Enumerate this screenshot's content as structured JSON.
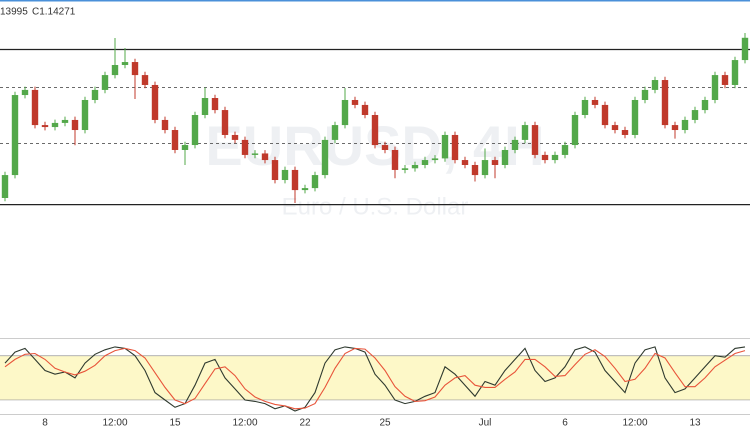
{
  "header": {
    "ohlc_partial": "13995",
    "close": "C1.14271"
  },
  "watermark": {
    "symbol": "EURUSD, 4H",
    "description": "Euro / U.S. Dollar"
  },
  "chart_data": [
    {
      "type": "candlestick",
      "categories": [
        null,
        null,
        null,
        null,
        "8",
        null,
        null,
        null,
        null,
        null,
        null,
        "12:00",
        null,
        null,
        null,
        null,
        null,
        "15",
        null,
        null,
        null,
        null,
        null,
        null,
        "12:00",
        null,
        null,
        null,
        null,
        null,
        "22",
        null,
        null,
        null,
        null,
        null,
        null,
        null,
        "25",
        null,
        null,
        null,
        null,
        null,
        null,
        null,
        null,
        null,
        "Jul",
        null,
        null,
        null,
        null,
        null,
        null,
        null,
        "6",
        null,
        null,
        null,
        null,
        null,
        null,
        "12:00",
        null,
        null,
        null,
        null,
        null,
        "13",
        null,
        null,
        null,
        null,
        null
      ],
      "open": [
        1.133,
        1.13439,
        1.13924,
        1.13955,
        1.13742,
        1.1373,
        1.13755,
        1.13773,
        1.13712,
        1.13894,
        1.13955,
        1.14045,
        1.14106,
        1.14124,
        1.14045,
        1.13985,
        1.13773,
        1.13712,
        1.13591,
        1.13621,
        1.13803,
        1.13906,
        1.13833,
        1.13682,
        1.13652,
        1.13561,
        1.1357,
        1.1353,
        1.13409,
        1.1347,
        1.13348,
        1.1336,
        1.13439,
        1.13652,
        1.13742,
        1.13894,
        1.13864,
        1.13803,
        1.13621,
        1.13591,
        1.1347,
        1.1348,
        1.135,
        1.1353,
        1.1354,
        1.13682,
        1.1353,
        1.135,
        1.13439,
        1.1353,
        1.135,
        1.13591,
        1.13652,
        1.13742,
        1.13561,
        1.1353,
        1.13561,
        1.13621,
        1.13803,
        1.13894,
        1.13864,
        1.13742,
        1.13712,
        1.13682,
        1.13894,
        1.13955,
        1.14015,
        1.13742,
        1.13712,
        1.13773,
        1.13833,
        1.13894,
        1.14045,
        1.13985,
        1.14136
      ],
      "high": [
        1.13459,
        1.13944,
        1.13975,
        1.13975,
        1.13762,
        1.13775,
        1.13793,
        1.13793,
        1.13914,
        1.13975,
        1.14065,
        1.1427,
        1.14209,
        1.14144,
        1.14065,
        1.14005,
        1.13793,
        1.13732,
        1.13641,
        1.13823,
        1.1397,
        1.13926,
        1.13853,
        1.13702,
        1.13672,
        1.1359,
        1.1359,
        1.1355,
        1.1349,
        1.1349,
        1.1338,
        1.13459,
        1.13672,
        1.13762,
        1.13967,
        1.13914,
        1.13884,
        1.13823,
        1.13641,
        1.13611,
        1.135,
        1.1352,
        1.1355,
        1.1356,
        1.13702,
        1.13702,
        1.1355,
        1.1352,
        1.136,
        1.1355,
        1.13611,
        1.13672,
        1.13762,
        1.13762,
        1.13581,
        1.13581,
        1.13641,
        1.13823,
        1.13914,
        1.13914,
        1.13884,
        1.13762,
        1.13732,
        1.13914,
        1.13975,
        1.14035,
        1.14035,
        1.13762,
        1.13793,
        1.13853,
        1.13914,
        1.14065,
        1.14065,
        1.14156,
        1.143
      ],
      "low": [
        1.1328,
        1.13419,
        1.13904,
        1.13722,
        1.1371,
        1.1371,
        1.13735,
        1.1362,
        1.13692,
        1.13874,
        1.13935,
        1.14025,
        1.14086,
        1.139,
        1.13965,
        1.13753,
        1.13692,
        1.13571,
        1.135,
        1.13601,
        1.13783,
        1.13813,
        1.13662,
        1.13632,
        1.13541,
        1.13541,
        1.1351,
        1.13389,
        1.13389,
        1.1327,
        1.13328,
        1.1334,
        1.13419,
        1.13632,
        1.13722,
        1.13844,
        1.13783,
        1.13601,
        1.13571,
        1.1342,
        1.1345,
        1.1346,
        1.1348,
        1.1351,
        1.1352,
        1.1351,
        1.1348,
        1.134,
        1.13419,
        1.1342,
        1.1348,
        1.13571,
        1.13632,
        1.13541,
        1.1351,
        1.1351,
        1.13541,
        1.13601,
        1.13783,
        1.13844,
        1.13722,
        1.13692,
        1.13662,
        1.13662,
        1.13874,
        1.13935,
        1.13722,
        1.1366,
        1.13692,
        1.13753,
        1.13813,
        1.13874,
        1.13965,
        1.13965,
        1.14116
      ],
      "close": [
        1.13439,
        1.13924,
        1.13955,
        1.13742,
        1.1373,
        1.13755,
        1.13773,
        1.13712,
        1.13894,
        1.13955,
        1.14045,
        1.14106,
        1.14124,
        1.14045,
        1.13985,
        1.13773,
        1.13712,
        1.13591,
        1.13621,
        1.13803,
        1.13906,
        1.13833,
        1.13682,
        1.13652,
        1.13561,
        1.1357,
        1.1353,
        1.13409,
        1.1347,
        1.13348,
        1.1336,
        1.13439,
        1.13652,
        1.13742,
        1.13894,
        1.13864,
        1.13803,
        1.13621,
        1.13591,
        1.1347,
        1.1348,
        1.135,
        1.1353,
        1.1354,
        1.13682,
        1.1353,
        1.135,
        1.13439,
        1.1353,
        1.135,
        1.13591,
        1.13652,
        1.13742,
        1.13561,
        1.1353,
        1.13561,
        1.13621,
        1.13803,
        1.13894,
        1.13864,
        1.13742,
        1.13712,
        1.13682,
        1.13894,
        1.13955,
        1.14015,
        1.13742,
        1.13712,
        1.13773,
        1.13833,
        1.13894,
        1.14045,
        1.13985,
        1.14136,
        1.14271
      ],
      "up_color": "#53a84a",
      "down_color": "#c0392b",
      "ylim": [
        1.125,
        1.145
      ],
      "levels": [
        {
          "value": 1.142,
          "style": "solid"
        },
        {
          "value": 1.1397,
          "style": "dashed"
        },
        {
          "value": 1.1363,
          "style": "dashed"
        },
        {
          "value": 1.1326,
          "style": "solid"
        }
      ]
    },
    {
      "type": "line",
      "series": [
        {
          "color": "#2f3a2f",
          "values": [
            70,
            85,
            90,
            75,
            60,
            55,
            58,
            50,
            70,
            82,
            88,
            92,
            90,
            80,
            60,
            30,
            20,
            10,
            15,
            40,
            70,
            75,
            50,
            35,
            20,
            18,
            15,
            8,
            12,
            5,
            10,
            30,
            70,
            88,
            92,
            90,
            85,
            55,
            40,
            20,
            15,
            18,
            25,
            30,
            65,
            55,
            40,
            25,
            45,
            40,
            60,
            75,
            90,
            60,
            45,
            50,
            65,
            88,
            92,
            85,
            60,
            45,
            30,
            70,
            88,
            92,
            50,
            30,
            35,
            50,
            65,
            80,
            78,
            90,
            92
          ]
        },
        {
          "color": "#e8543a",
          "values": [
            65,
            75,
            82,
            83,
            75,
            63,
            58,
            54,
            59,
            67,
            80,
            87,
            90,
            87,
            77,
            57,
            37,
            20,
            15,
            22,
            42,
            62,
            65,
            53,
            35,
            24,
            18,
            14,
            12,
            8,
            9,
            15,
            37,
            63,
            83,
            90,
            89,
            77,
            60,
            38,
            25,
            18,
            19,
            24,
            40,
            50,
            53,
            40,
            37,
            37,
            48,
            58,
            75,
            75,
            65,
            52,
            53,
            68,
            82,
            88,
            79,
            63,
            45,
            48,
            63,
            83,
            77,
            57,
            38,
            38,
            50,
            65,
            74,
            83,
            87
          ]
        }
      ],
      "ylim": [
        0,
        100
      ],
      "band": [
        20,
        80
      ],
      "band_color": "#fdf8c8"
    }
  ]
}
